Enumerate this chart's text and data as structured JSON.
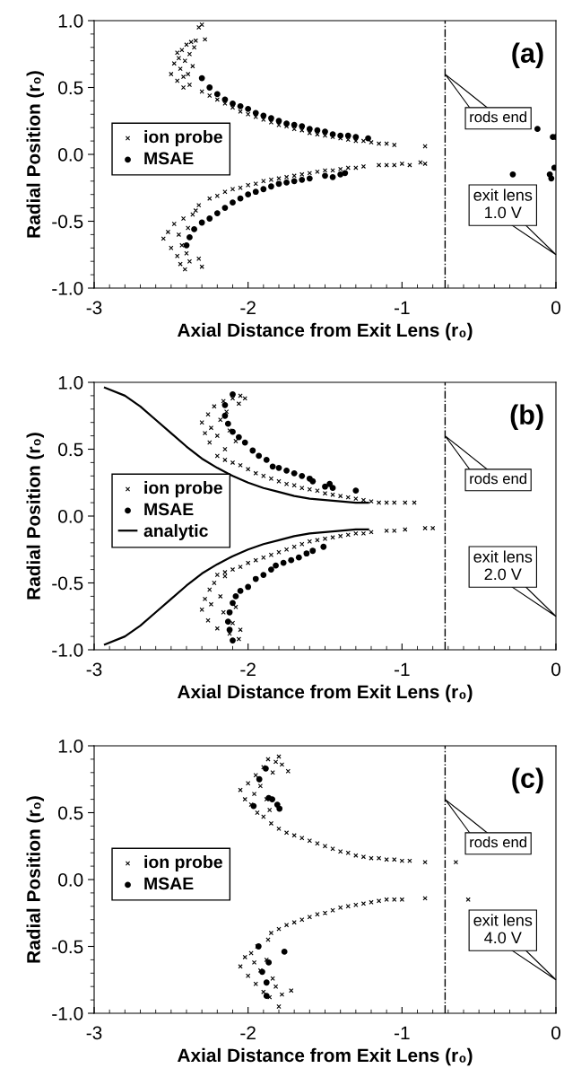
{
  "chart_data": [
    {
      "type": "scatter",
      "title": "(a)",
      "xlabel": "Axial Distance from Exit Lens (r₀)",
      "ylabel": "Radial Position (r₀)",
      "xlim": [
        -3,
        0
      ],
      "xticks": [
        -3,
        -2,
        -1,
        0
      ],
      "ylim": [
        -1,
        1
      ],
      "yticks": [
        {
          "value": 1,
          "label": "1.0"
        },
        {
          "value": 0.5,
          "label": "0.5"
        },
        {
          "value": 0,
          "label": "0.0"
        },
        {
          "value": -0.5,
          "label": "-0.5"
        },
        {
          "value": -1,
          "label": "-1.0"
        }
      ],
      "grid": false,
      "legend": "left",
      "ref_lines": [
        {
          "axis": "x",
          "value": -0.72,
          "line_style": "dashdot",
          "color": "#000000"
        }
      ],
      "annotations": [
        "rods end",
        "exit lens\n1.0 V"
      ],
      "series": [
        {
          "name": "ion probe",
          "marker": "cross",
          "color": "#000000",
          "x": [
            -2.5,
            -2.48,
            -2.46,
            -2.45,
            -2.44,
            -2.43,
            -2.42,
            -2.41,
            -2.4,
            -2.39,
            -2.38,
            -2.37,
            -2.36,
            -2.35,
            -2.46,
            -2.42,
            -2.38,
            -2.34,
            -2.32,
            -2.3,
            -2.28,
            -2.3,
            -2.25,
            -2.2,
            -2.15,
            -2.1,
            -2.05,
            -2.0,
            -1.95,
            -1.9,
            -1.85,
            -1.8,
            -1.75,
            -1.7,
            -1.65,
            -1.6,
            -1.55,
            -1.5,
            -1.45,
            -1.4,
            -1.35,
            -1.3,
            -1.25,
            -1.2,
            -1.15,
            -1.1,
            -1.05,
            -0.85,
            -2.55,
            -2.52,
            -2.5,
            -2.48,
            -2.46,
            -2.45,
            -2.44,
            -2.43,
            -2.42,
            -2.41,
            -2.4,
            -2.39,
            -2.38,
            -2.36,
            -2.34,
            -2.32,
            -2.32,
            -2.3,
            -2.25,
            -2.2,
            -2.15,
            -2.1,
            -2.05,
            -2.0,
            -1.95,
            -1.9,
            -1.85,
            -1.8,
            -1.75,
            -1.7,
            -1.65,
            -1.6,
            -1.55,
            -1.5,
            -1.45,
            -1.4,
            -1.35,
            -1.3,
            -1.25,
            -1.15,
            -1.1,
            -1.05,
            -1.0,
            -0.95,
            -0.88,
            -0.85
          ],
          "values": [
            0.6,
            0.68,
            0.55,
            0.72,
            0.64,
            0.78,
            0.5,
            0.7,
            0.82,
            0.6,
            0.75,
            0.84,
            0.66,
            0.8,
            0.76,
            0.58,
            0.52,
            0.85,
            0.95,
            0.97,
            0.86,
            0.47,
            0.44,
            0.41,
            0.38,
            0.35,
            0.32,
            0.3,
            0.28,
            0.26,
            0.24,
            0.22,
            0.21,
            0.19,
            0.18,
            0.16,
            0.15,
            0.14,
            0.13,
            0.12,
            0.11,
            0.1,
            0.1,
            0.09,
            0.08,
            0.08,
            0.07,
            0.06,
            -0.63,
            -0.58,
            -0.7,
            -0.52,
            -0.76,
            -0.6,
            -0.82,
            -0.68,
            -0.48,
            -0.86,
            -0.74,
            -0.55,
            -0.8,
            -0.45,
            -0.42,
            -0.38,
            -0.78,
            -0.84,
            -0.33,
            -0.31,
            -0.28,
            -0.26,
            -0.25,
            -0.23,
            -0.22,
            -0.2,
            -0.19,
            -0.18,
            -0.17,
            -0.16,
            -0.15,
            -0.14,
            -0.13,
            -0.12,
            -0.12,
            -0.11,
            -0.1,
            -0.1,
            -0.09,
            -0.08,
            -0.08,
            -0.08,
            -0.07,
            -0.08,
            -0.06,
            -0.07
          ]
        },
        {
          "name": "MSAE",
          "marker": "circle",
          "color": "#000000",
          "x": [
            -2.3,
            -2.25,
            -2.2,
            -2.15,
            -2.1,
            -2.05,
            -2.0,
            -1.95,
            -1.9,
            -1.85,
            -1.8,
            -1.75,
            -1.7,
            -1.65,
            -1.6,
            -1.55,
            -1.5,
            -1.45,
            -1.4,
            -1.35,
            -1.3,
            -1.22,
            -0.12,
            -0.02,
            0,
            -2.4,
            -2.38,
            -2.35,
            -2.3,
            -2.25,
            -2.2,
            -2.15,
            -2.1,
            -2.05,
            -2.0,
            -1.95,
            -1.9,
            -1.85,
            -1.8,
            -1.75,
            -1.7,
            -1.65,
            -1.6,
            -1.5,
            -1.45,
            -1.4,
            -1.37,
            -0.28,
            -0.04,
            -0.03,
            -0.01
          ],
          "values": [
            0.57,
            0.5,
            0.45,
            0.41,
            0.38,
            0.36,
            0.34,
            0.31,
            0.29,
            0.27,
            0.25,
            0.23,
            0.22,
            0.21,
            0.19,
            0.18,
            0.17,
            0.15,
            0.14,
            0.14,
            0.13,
            0.12,
            0.19,
            0.13,
            0.13,
            -0.68,
            -0.62,
            -0.56,
            -0.51,
            -0.48,
            -0.44,
            -0.4,
            -0.36,
            -0.33,
            -0.3,
            -0.28,
            -0.26,
            -0.24,
            -0.22,
            -0.21,
            -0.2,
            -0.19,
            -0.18,
            -0.16,
            -0.17,
            -0.15,
            -0.14,
            -0.15,
            -0.15,
            -0.18,
            -0.1
          ]
        }
      ]
    },
    {
      "type": "scatter",
      "title": "(b)",
      "xlabel": "Axial Distance from Exit Lens (r₀)",
      "ylabel": "Radial Position (r₀)",
      "xlim": [
        -3,
        0
      ],
      "xticks": [
        -3,
        -2,
        -1,
        0
      ],
      "ylim": [
        -1,
        1
      ],
      "yticks": [
        {
          "value": 1,
          "label": "1.0"
        },
        {
          "value": 0.5,
          "label": "0.5"
        },
        {
          "value": 0,
          "label": "0.0"
        },
        {
          "value": -0.5,
          "label": "-0.5"
        },
        {
          "value": -1,
          "label": "-1.0"
        }
      ],
      "grid": false,
      "legend": "left",
      "ref_lines": [
        {
          "axis": "x",
          "value": -0.72,
          "line_style": "dashdot",
          "color": "#000000"
        }
      ],
      "annotations": [
        "rods end",
        "exit lens\n2.0 V"
      ],
      "series": [
        {
          "name": "ion probe",
          "marker": "cross",
          "color": "#000000",
          "x": [
            -2.3,
            -2.28,
            -2.26,
            -2.25,
            -2.24,
            -2.22,
            -2.2,
            -2.18,
            -2.16,
            -2.15,
            -2.14,
            -2.12,
            -2.1,
            -2.08,
            -2.06,
            -2.05,
            -2.02,
            -2.2,
            -2.15,
            -2.1,
            -2.05,
            -2.0,
            -1.95,
            -1.9,
            -1.85,
            -1.8,
            -1.75,
            -1.7,
            -1.65,
            -1.6,
            -1.55,
            -1.5,
            -1.45,
            -1.4,
            -1.35,
            -1.3,
            -1.25,
            -1.2,
            -1.15,
            -1.1,
            -1.05,
            -0.98,
            -0.92,
            -2.3,
            -2.28,
            -2.26,
            -2.25,
            -2.24,
            -2.22,
            -2.2,
            -2.18,
            -2.16,
            -2.15,
            -2.12,
            -2.1,
            -2.08,
            -2.06,
            -2.05,
            -2.2,
            -2.15,
            -2.1,
            -2.05,
            -2.0,
            -1.95,
            -1.9,
            -1.85,
            -1.8,
            -1.75,
            -1.7,
            -1.65,
            -1.6,
            -1.55,
            -1.5,
            -1.45,
            -1.4,
            -1.35,
            -1.3,
            -1.25,
            -1.2,
            -1.1,
            -1.05,
            -0.98,
            -0.85,
            -0.8
          ],
          "values": [
            0.7,
            0.62,
            0.76,
            0.55,
            0.66,
            0.82,
            0.6,
            0.72,
            0.86,
            0.5,
            0.78,
            0.64,
            0.88,
            0.56,
            0.84,
            0.9,
            0.88,
            0.45,
            0.42,
            0.4,
            0.38,
            0.35,
            0.32,
            0.3,
            0.28,
            0.26,
            0.24,
            0.23,
            0.21,
            0.2,
            0.19,
            0.17,
            0.16,
            0.15,
            0.14,
            0.13,
            0.12,
            0.11,
            0.1,
            0.1,
            0.1,
            0.1,
            0.1,
            -0.7,
            -0.62,
            -0.78,
            -0.55,
            -0.66,
            -0.5,
            -0.84,
            -0.6,
            -0.72,
            -0.45,
            -0.88,
            -0.8,
            -0.68,
            -0.92,
            -0.85,
            -0.44,
            -0.42,
            -0.4,
            -0.38,
            -0.35,
            -0.33,
            -0.31,
            -0.29,
            -0.27,
            -0.25,
            -0.23,
            -0.21,
            -0.19,
            -0.18,
            -0.17,
            -0.16,
            -0.15,
            -0.14,
            -0.13,
            -0.13,
            -0.12,
            -0.11,
            -0.11,
            -0.1,
            -0.09,
            -0.09
          ]
        },
        {
          "name": "MSAE",
          "marker": "circle",
          "color": "#000000",
          "x": [
            -2.1,
            -2.15,
            -2.15,
            -2.13,
            -2.1,
            -2.06,
            -2.02,
            -1.97,
            -1.93,
            -1.88,
            -1.84,
            -1.8,
            -1.75,
            -1.7,
            -1.65,
            -1.6,
            -1.58,
            -1.5,
            -1.47,
            -1.45,
            -1.3,
            -2.1,
            -2.12,
            -2.13,
            -2.12,
            -2.1,
            -2.08,
            -2.05,
            -2.0,
            -1.95,
            -1.9,
            -1.85,
            -1.82,
            -1.77,
            -1.72,
            -1.67,
            -1.62,
            -1.58,
            -1.51
          ],
          "values": [
            0.91,
            0.83,
            0.75,
            0.69,
            0.63,
            0.59,
            0.55,
            0.49,
            0.45,
            0.42,
            0.37,
            0.36,
            0.34,
            0.32,
            0.3,
            0.28,
            0.26,
            0.22,
            0.24,
            0.21,
            0.19,
            -0.93,
            -0.85,
            -0.79,
            -0.72,
            -0.65,
            -0.6,
            -0.56,
            -0.53,
            -0.47,
            -0.44,
            -0.4,
            -0.37,
            -0.35,
            -0.33,
            -0.31,
            -0.28,
            -0.26,
            -0.23
          ]
        },
        {
          "name": "analytic",
          "type": "line",
          "marker": "none",
          "line_style": "solid",
          "color": "#000000",
          "x": [
            -2.93,
            -2.8,
            -2.7,
            -2.6,
            -2.5,
            -2.4,
            -2.3,
            -2.2,
            -2.1,
            -2.0,
            -1.9,
            -1.8,
            -1.7,
            -1.6,
            -1.5,
            -1.4,
            -1.3,
            -1.22
          ],
          "values": [
            0.96,
            0.9,
            0.82,
            0.72,
            0.62,
            0.52,
            0.43,
            0.36,
            0.3,
            0.25,
            0.21,
            0.18,
            0.15,
            0.13,
            0.12,
            0.11,
            0.1,
            0.1
          ]
        },
        {
          "type": "line",
          "marker": "none",
          "line_style": "solid",
          "color": "#000000",
          "x": [
            -1.22,
            -1.3,
            -1.4,
            -1.5,
            -1.6,
            -1.7,
            -1.8,
            -1.9,
            -2.0,
            -2.1,
            -2.2,
            -2.3,
            -2.4,
            -2.5,
            -2.6,
            -2.7,
            -2.8,
            -2.93
          ],
          "values": [
            -0.1,
            -0.1,
            -0.11,
            -0.12,
            -0.13,
            -0.15,
            -0.18,
            -0.21,
            -0.25,
            -0.3,
            -0.36,
            -0.43,
            -0.52,
            -0.62,
            -0.72,
            -0.82,
            -0.9,
            -0.96
          ]
        }
      ]
    },
    {
      "type": "scatter",
      "title": "(c)",
      "xlabel": "Axial Distance from Exit Lens (r₀)",
      "ylabel": "Radial Position (r₀)",
      "xlim": [
        -3,
        0
      ],
      "xticks": [
        -3,
        -2,
        -1,
        0
      ],
      "ylim": [
        -1,
        1
      ],
      "yticks": [
        {
          "value": 1,
          "label": "1.0"
        },
        {
          "value": 0.5,
          "label": "0.5"
        },
        {
          "value": 0,
          "label": "0.0"
        },
        {
          "value": -0.5,
          "label": "-0.5"
        },
        {
          "value": -1,
          "label": "-1.0"
        }
      ],
      "grid": false,
      "legend": "left",
      "ref_lines": [
        {
          "axis": "x",
          "value": -0.72,
          "line_style": "dashdot",
          "color": "#000000"
        }
      ],
      "annotations": [
        "rods end",
        "exit lens\n4.0 V"
      ],
      "series": [
        {
          "name": "ion probe",
          "marker": "cross",
          "color": "#000000",
          "x": [
            -2.05,
            -2.02,
            -2.0,
            -1.98,
            -1.96,
            -1.95,
            -1.94,
            -1.92,
            -1.9,
            -1.88,
            -1.87,
            -1.86,
            -1.84,
            -1.82,
            -1.8,
            -1.78,
            -1.74,
            -1.9,
            -1.85,
            -1.8,
            -1.75,
            -1.7,
            -1.65,
            -1.6,
            -1.55,
            -1.5,
            -1.45,
            -1.4,
            -1.35,
            -1.3,
            -1.25,
            -1.2,
            -1.15,
            -1.1,
            -1.05,
            -1.0,
            -0.95,
            -0.85,
            -0.65,
            -2.05,
            -2.02,
            -2.0,
            -1.98,
            -1.96,
            -1.95,
            -1.94,
            -1.92,
            -1.9,
            -1.88,
            -1.87,
            -1.86,
            -1.84,
            -1.82,
            -1.8,
            -1.78,
            -1.72,
            -1.85,
            -1.8,
            -1.75,
            -1.7,
            -1.65,
            -1.6,
            -1.55,
            -1.5,
            -1.45,
            -1.4,
            -1.35,
            -1.3,
            -1.25,
            -1.2,
            -1.15,
            -1.1,
            -1.05,
            -1.0,
            -0.85,
            -0.57
          ],
          "values": [
            0.67,
            0.6,
            0.72,
            0.56,
            0.64,
            0.78,
            0.5,
            0.7,
            0.84,
            0.6,
            0.9,
            0.52,
            0.8,
            0.88,
            0.92,
            0.86,
            0.81,
            0.47,
            0.42,
            0.38,
            0.35,
            0.33,
            0.31,
            0.29,
            0.27,
            0.25,
            0.23,
            0.21,
            0.2,
            0.18,
            0.17,
            0.16,
            0.16,
            0.15,
            0.15,
            0.14,
            0.14,
            0.13,
            0.13,
            -0.65,
            -0.58,
            -0.72,
            -0.55,
            -0.62,
            -0.78,
            -0.5,
            -0.68,
            -0.84,
            -0.6,
            -0.45,
            -0.88,
            -0.74,
            -0.8,
            -0.95,
            -0.86,
            -0.83,
            -0.4,
            -0.37,
            -0.34,
            -0.32,
            -0.3,
            -0.28,
            -0.26,
            -0.25,
            -0.23,
            -0.21,
            -0.2,
            -0.19,
            -0.18,
            -0.17,
            -0.16,
            -0.15,
            -0.15,
            -0.15,
            -0.14,
            -0.15
          ]
        },
        {
          "name": "MSAE",
          "marker": "circle",
          "color": "#000000",
          "x": [
            -1.885,
            -1.927,
            -1.866,
            -1.843,
            -1.81,
            -1.796,
            -1.964,
            -1.932,
            -1.866,
            -1.764,
            -1.908,
            -1.88,
            -1.88
          ],
          "values": [
            0.83,
            0.75,
            0.61,
            0.6,
            0.56,
            0.53,
            0.55,
            -0.5,
            -0.62,
            -0.54,
            -0.69,
            -0.77,
            -0.87
          ]
        }
      ]
    }
  ]
}
